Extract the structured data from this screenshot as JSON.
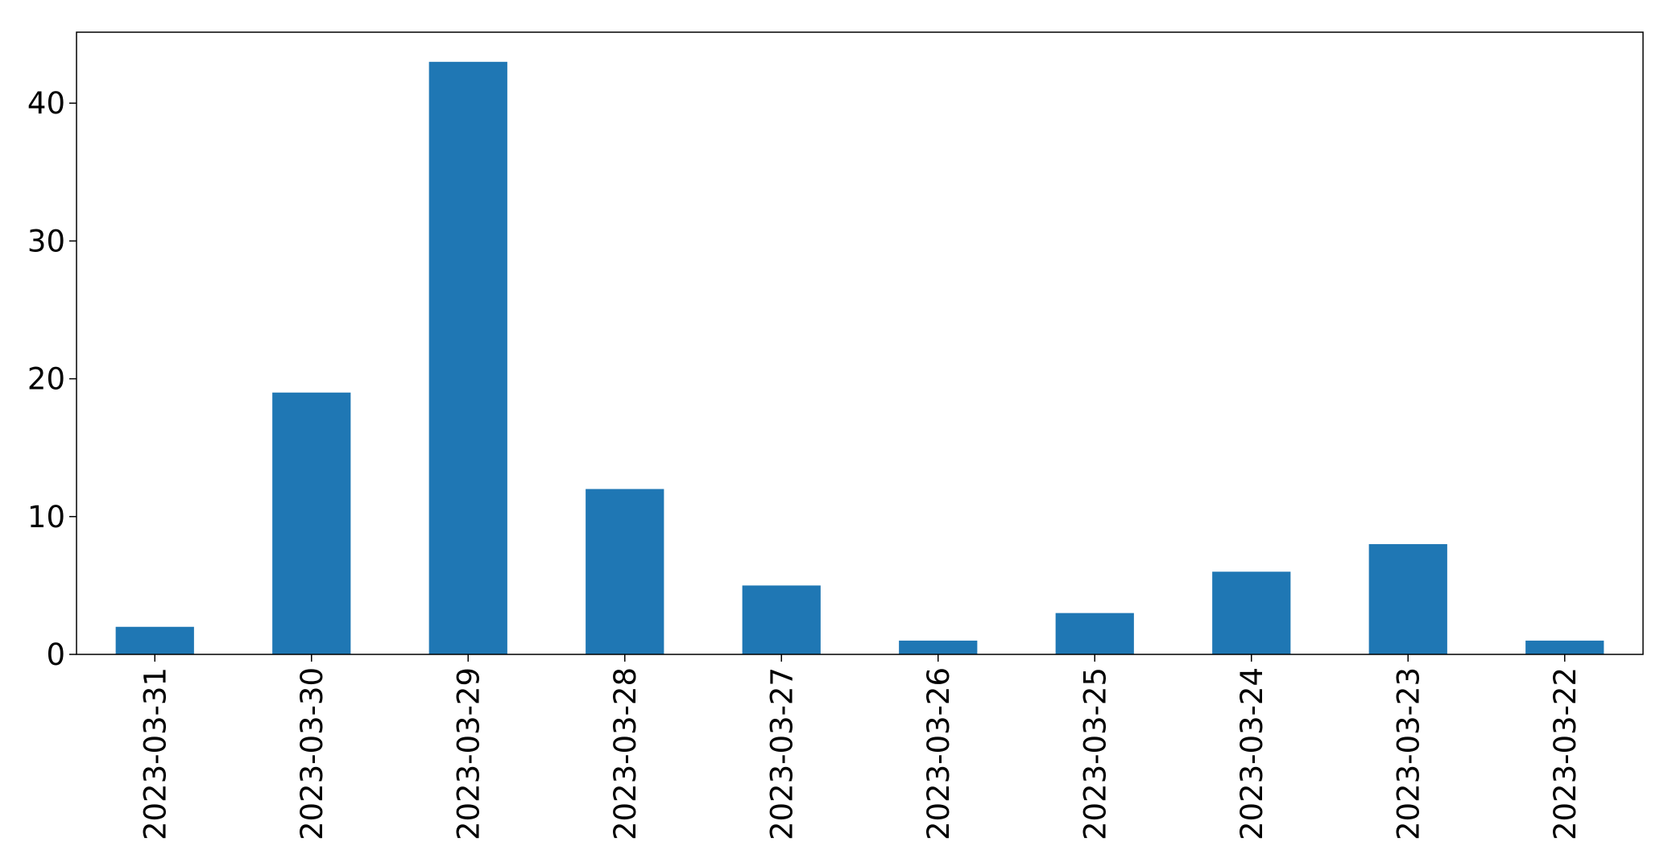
{
  "chart_data": {
    "type": "bar",
    "title": "",
    "xlabel": "",
    "ylabel": "",
    "categories": [
      "2023-03-31",
      "2023-03-30",
      "2023-03-29",
      "2023-03-28",
      "2023-03-27",
      "2023-03-26",
      "2023-03-25",
      "2023-03-24",
      "2023-03-23",
      "2023-03-22"
    ],
    "values": [
      2,
      19,
      43,
      12,
      5,
      1,
      3,
      6,
      8,
      1
    ],
    "ylim": [
      0,
      45.15
    ],
    "yticks": [
      0,
      10,
      20,
      30,
      40
    ],
    "grid": false,
    "legend": "none",
    "bar_color": "#1f77b4"
  }
}
